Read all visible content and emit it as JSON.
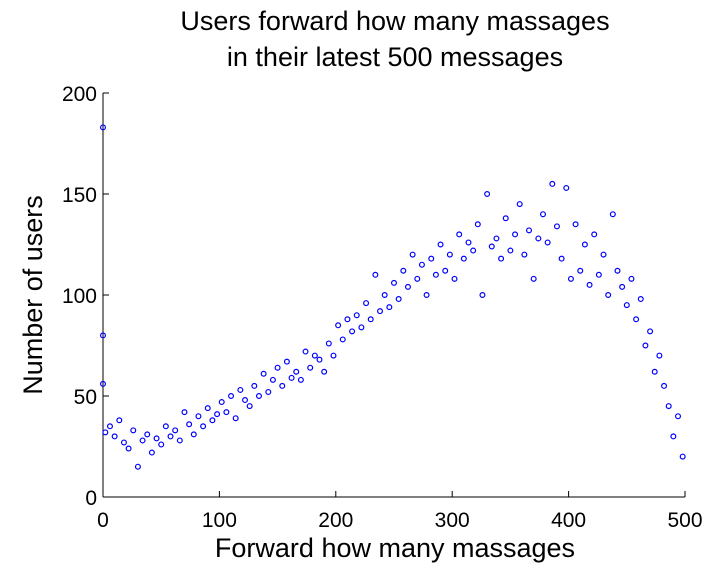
{
  "chart_data": {
    "type": "scatter",
    "title": [
      "Users forward how many massages",
      "in their latest 500 messages"
    ],
    "x_label": "Forward how many massages",
    "y_label": "Number of users",
    "xlim": [
      0,
      500
    ],
    "xticks": [
      0,
      100,
      200,
      300,
      400,
      500
    ],
    "ylim": [
      0,
      200
    ],
    "yticks": [
      0,
      50,
      100,
      150,
      200
    ],
    "series": [
      {
        "color": "#0000ff",
        "x": [
          0,
          0,
          0,
          2,
          6,
          10,
          14,
          18,
          22,
          26,
          30,
          34,
          38,
          42,
          46,
          50,
          54,
          58,
          62,
          66,
          70,
          74,
          78,
          82,
          86,
          90,
          94,
          98,
          102,
          106,
          110,
          114,
          118,
          122,
          126,
          130,
          134,
          138,
          142,
          146,
          150,
          154,
          158,
          162,
          166,
          170,
          174,
          178,
          182,
          186,
          190,
          194,
          198,
          202,
          206,
          210,
          214,
          218,
          222,
          226,
          230,
          234,
          238,
          242,
          246,
          250,
          254,
          258,
          262,
          266,
          270,
          274,
          278,
          282,
          286,
          290,
          294,
          298,
          302,
          306,
          310,
          314,
          318,
          322,
          326,
          330,
          334,
          338,
          342,
          346,
          350,
          354,
          358,
          362,
          366,
          370,
          374,
          378,
          382,
          386,
          390,
          394,
          398,
          402,
          406,
          410,
          414,
          418,
          422,
          426,
          430,
          434,
          438,
          442,
          446,
          450,
          454,
          458,
          462,
          466,
          470,
          474,
          478,
          482,
          486,
          490,
          494,
          498
        ],
        "values": [
          183,
          80,
          56,
          32,
          35,
          30,
          38,
          27,
          24,
          33,
          15,
          28,
          31,
          22,
          29,
          26,
          35,
          30,
          33,
          28,
          42,
          36,
          31,
          40,
          35,
          44,
          38,
          41,
          47,
          42,
          50,
          39,
          53,
          48,
          45,
          55,
          50,
          61,
          52,
          58,
          64,
          55,
          67,
          59,
          62,
          58,
          72,
          64,
          70,
          68,
          62,
          76,
          70,
          85,
          78,
          88,
          82,
          90,
          84,
          96,
          88,
          110,
          92,
          100,
          94,
          106,
          98,
          112,
          104,
          120,
          108,
          115,
          100,
          118,
          110,
          125,
          112,
          120,
          108,
          130,
          118,
          126,
          122,
          135,
          100,
          150,
          124,
          128,
          118,
          138,
          122,
          130,
          145,
          120,
          132,
          108,
          128,
          140,
          126,
          155,
          134,
          118,
          153,
          108,
          135,
          112,
          125,
          105,
          130,
          110,
          120,
          100,
          140,
          112,
          104,
          95,
          108,
          88,
          98,
          75,
          82,
          62,
          70,
          55,
          45,
          30,
          40,
          20
        ]
      }
    ]
  }
}
